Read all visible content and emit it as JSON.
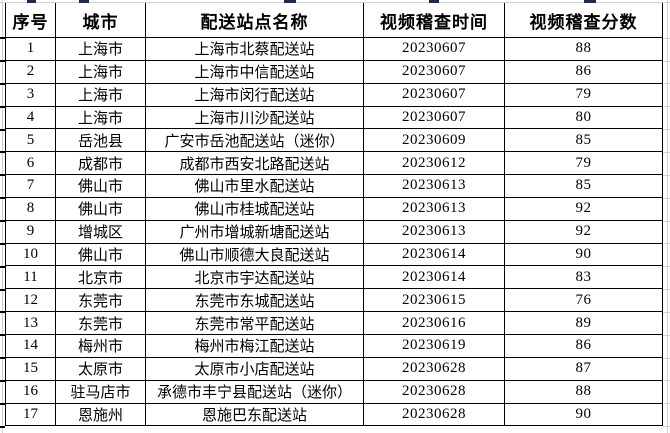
{
  "table": {
    "columns": [
      "序号",
      "城市",
      "配送站点名称",
      "视频稽查时间",
      "视频稽查分数"
    ],
    "rows": [
      {
        "no": "1",
        "city": "上海市",
        "station": "上海市北蔡配送站",
        "date": "20230607",
        "score": "88"
      },
      {
        "no": "2",
        "city": "上海市",
        "station": "上海市中信配送站",
        "date": "20230607",
        "score": "86"
      },
      {
        "no": "3",
        "city": "上海市",
        "station": "上海市闵行配送站",
        "date": "20230607",
        "score": "79"
      },
      {
        "no": "4",
        "city": "上海市",
        "station": "上海市川沙配送站",
        "date": "20230607",
        "score": "80"
      },
      {
        "no": "5",
        "city": "岳池县",
        "station": "广安市岳池配送站（迷你）",
        "date": "20230609",
        "score": "85"
      },
      {
        "no": "6",
        "city": "成都市",
        "station": "成都市西安北路配送站",
        "date": "20230612",
        "score": "79"
      },
      {
        "no": "7",
        "city": "佛山市",
        "station": "佛山市里水配送站",
        "date": "20230613",
        "score": "85"
      },
      {
        "no": "8",
        "city": "佛山市",
        "station": "佛山市桂城配送站",
        "date": "20230613",
        "score": "92"
      },
      {
        "no": "9",
        "city": "增城区",
        "station": "广州市增城新塘配送站",
        "date": "20230613",
        "score": "92"
      },
      {
        "no": "10",
        "city": "佛山市",
        "station": "佛山市顺德大良配送站",
        "date": "20230614",
        "score": "90"
      },
      {
        "no": "11",
        "city": "北京市",
        "station": "北京市宇达配送站",
        "date": "20230614",
        "score": "83"
      },
      {
        "no": "12",
        "city": "东莞市",
        "station": "东莞市东城配送站",
        "date": "20230615",
        "score": "76"
      },
      {
        "no": "13",
        "city": "东莞市",
        "station": "东莞市常平配送站",
        "date": "20230616",
        "score": "89"
      },
      {
        "no": "14",
        "city": "梅州市",
        "station": "梅州市梅江配送站",
        "date": "20230619",
        "score": "86"
      },
      {
        "no": "15",
        "city": "太原市",
        "station": "太原市小店配送站",
        "date": "20230628",
        "score": "87"
      },
      {
        "no": "16",
        "city": "驻马店市",
        "station": "承德市丰宁县配送站（迷你）",
        "date": "20230628",
        "score": "88"
      },
      {
        "no": "17",
        "city": "恩施州",
        "station": "恩施巴东配送站",
        "date": "20230628",
        "score": "90"
      }
    ]
  }
}
